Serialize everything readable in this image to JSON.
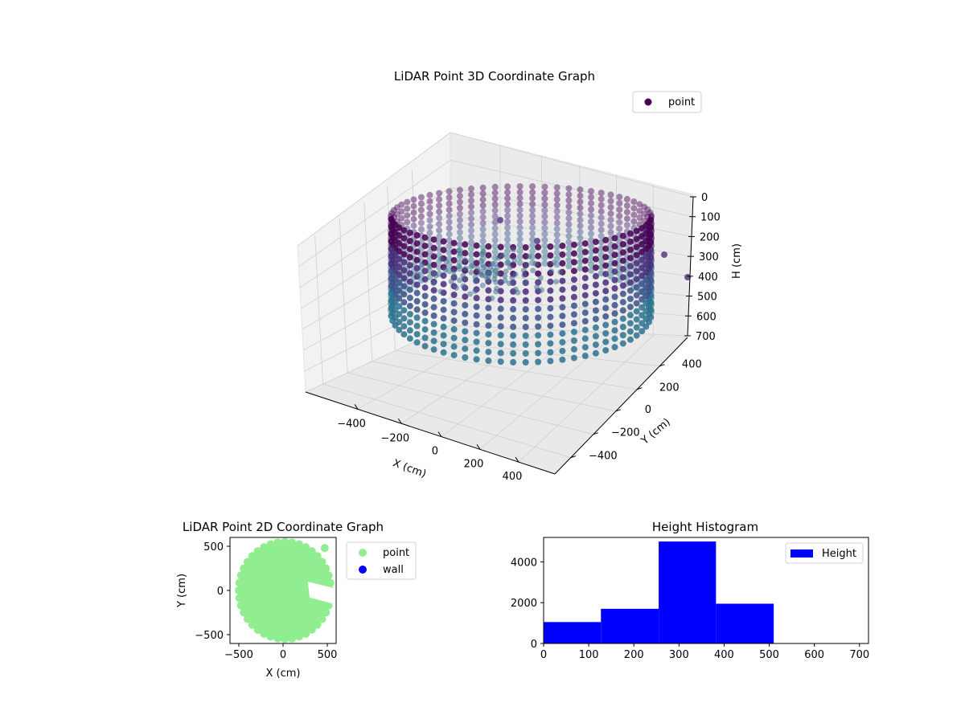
{
  "colors": {
    "point_3d_dark": "#440154",
    "point_3d_mid": "#3b528b",
    "point_3d_light": "#2c728e",
    "point_2d": "#90ee90",
    "wall_2d": "#0000ff",
    "histogram": "#0000ff",
    "pane": "#f2f2f2",
    "grid": "#d0d0d0"
  },
  "chart_data": [
    {
      "type": "scatter",
      "title": "LiDAR Point 3D Coordinate Graph",
      "xlabel": "X (cm)",
      "ylabel": "Y (cm)",
      "zlabel": "H (cm)",
      "xticks": [
        "−400",
        "−200",
        "0",
        "200",
        "400"
      ],
      "yticks": [
        "−400",
        "−200",
        "0",
        "200",
        "400"
      ],
      "zticks": [
        "0",
        "100",
        "200",
        "300",
        "400",
        "500",
        "600",
        "700"
      ],
      "xlim": [
        -550,
        550
      ],
      "ylim": [
        -550,
        550
      ],
      "zlim": [
        700,
        0
      ],
      "z_axis_inverted": true,
      "grid": true,
      "legend": {
        "position": "top-right",
        "entries": [
          "point"
        ]
      },
      "series": [
        {
          "name": "point",
          "description_shape": "ring of wall points of radius about 500 cm, heights 0 to 500 cm"
        }
      ]
    },
    {
      "type": "scatter",
      "title": "LiDAR Point 2D Coordinate Graph",
      "xlabel": "X (cm)",
      "ylabel": "Y (cm)",
      "xticks": [
        "−500",
        "0",
        "500"
      ],
      "yticks": [
        "500",
        "0",
        "−500"
      ],
      "xlim": [
        -600,
        600
      ],
      "ylim": [
        -600,
        600
      ],
      "legend": {
        "position": "outside-right",
        "entries": [
          "point",
          "wall"
        ]
      },
      "series": [
        {
          "name": "point",
          "approx_extent": {
            "x": [
              -520,
              560
            ],
            "y": [
              -560,
              560
            ]
          }
        },
        {
          "name": "wall",
          "count": 0
        }
      ]
    },
    {
      "type": "bar",
      "title": "Height Histogram",
      "xticks": [
        "0",
        "100",
        "200",
        "300",
        "400",
        "500",
        "600",
        "700"
      ],
      "yticks": [
        "0",
        "2000",
        "4000"
      ],
      "xlim": [
        0,
        720
      ],
      "ylim": [
        0,
        5200
      ],
      "legend": {
        "position": "top-right",
        "entries": [
          "Height"
        ]
      },
      "bins": [
        {
          "x0": 0,
          "x1": 127,
          "value": 1050
        },
        {
          "x0": 127,
          "x1": 255,
          "value": 1700
        },
        {
          "x0": 255,
          "x1": 382,
          "value": 5000
        },
        {
          "x0": 382,
          "x1": 510,
          "value": 1950
        },
        {
          "x0": 510,
          "x1": 637,
          "value": 0
        },
        {
          "x0": 637,
          "x1": 765,
          "value": 0
        }
      ]
    }
  ]
}
